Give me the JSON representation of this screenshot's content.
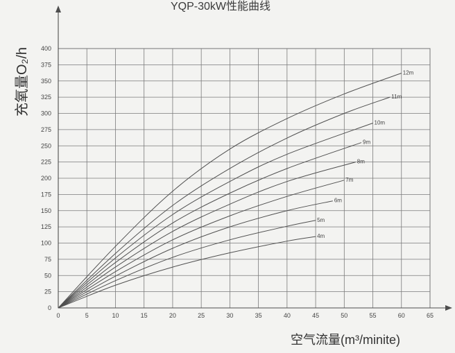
{
  "chart_data": {
    "type": "line",
    "title": "YQP-30kW性能曲线",
    "ylabel": "充氧量O₂/h",
    "xlabel": "空气流量(m³/minite)",
    "xlim": [
      0,
      65
    ],
    "ylim": [
      0,
      400
    ],
    "xticks": [
      0,
      5,
      10,
      15,
      20,
      25,
      30,
      35,
      40,
      45,
      50,
      55,
      60,
      65
    ],
    "yticks": [
      0,
      25,
      50,
      75,
      100,
      125,
      150,
      175,
      200,
      225,
      250,
      275,
      300,
      325,
      350,
      375,
      400
    ],
    "grid": true,
    "series": [
      {
        "name": "4m",
        "x": [
          0,
          10,
          20,
          30,
          40,
          45
        ],
        "y": [
          0,
          35,
          63,
          85,
          103,
          110
        ]
      },
      {
        "name": "5m",
        "x": [
          0,
          10,
          20,
          30,
          40,
          45
        ],
        "y": [
          0,
          42,
          78,
          105,
          126,
          135
        ]
      },
      {
        "name": "6m",
        "x": [
          0,
          10,
          20,
          30,
          40,
          48
        ],
        "y": [
          0,
          49,
          92,
          125,
          150,
          165
        ]
      },
      {
        "name": "7m",
        "x": [
          0,
          10,
          20,
          30,
          40,
          50
        ],
        "y": [
          0,
          56,
          105,
          142,
          172,
          197
        ]
      },
      {
        "name": "8m",
        "x": [
          0,
          10,
          20,
          30,
          40,
          52
        ],
        "y": [
          0,
          63,
          118,
          160,
          195,
          225
        ]
      },
      {
        "name": "9m",
        "x": [
          0,
          10,
          20,
          30,
          40,
          53
        ],
        "y": [
          0,
          70,
          131,
          177,
          215,
          255
        ]
      },
      {
        "name": "10m",
        "x": [
          0,
          10,
          20,
          30,
          40,
          55
        ],
        "y": [
          0,
          77,
          144,
          195,
          237,
          285
        ]
      },
      {
        "name": "11m",
        "x": [
          0,
          10,
          20,
          30,
          40,
          50,
          58
        ],
        "y": [
          0,
          84,
          158,
          215,
          262,
          300,
          325
        ]
      },
      {
        "name": "12m",
        "x": [
          0,
          10,
          20,
          30,
          40,
          50,
          60
        ],
        "y": [
          0,
          95,
          180,
          245,
          292,
          330,
          362
        ]
      }
    ]
  }
}
